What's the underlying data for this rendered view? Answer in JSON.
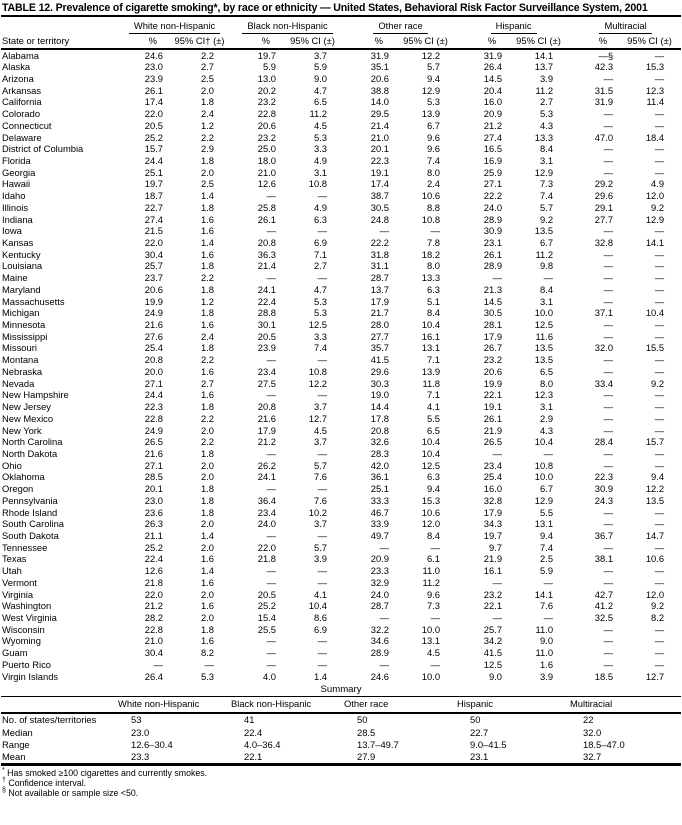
{
  "title": "TABLE 12. Prevalence of cigarette smoking*, by race or ethnicity — United States, Behavioral Risk Factor Surveillance System, 2001",
  "table": {
    "row_header": "State or territory",
    "groups": [
      "White non-Hispanic",
      "Black non-Hispanic",
      "Other race",
      "Hispanic",
      "Multiracial"
    ],
    "pct_label": "%",
    "ci_label_first": "95% CI† (±)",
    "ci_label": "95% CI (±)",
    "rows": [
      {
        "state": "Alabama",
        "values": [
          "24.6",
          "2.2",
          "19.7",
          "3.7",
          "31.9",
          "12.2",
          "31.9",
          "14.1",
          "—§",
          "—"
        ]
      },
      {
        "state": "Alaska",
        "values": [
          "23.0",
          "2.7",
          "5.9",
          "5.9",
          "35.1",
          "5.7",
          "26.4",
          "13.7",
          "42.3",
          "15.3"
        ]
      },
      {
        "state": "Arizona",
        "values": [
          "23.9",
          "2.5",
          "13.0",
          "9.0",
          "20.6",
          "9.4",
          "14.5",
          "3.9",
          "—",
          "—"
        ]
      },
      {
        "state": "Arkansas",
        "values": [
          "26.1",
          "2.0",
          "20.2",
          "4.7",
          "38.8",
          "12.9",
          "20.4",
          "11.2",
          "31.5",
          "12.3"
        ]
      },
      {
        "state": "California",
        "values": [
          "17.4",
          "1.8",
          "23.2",
          "6.5",
          "14.0",
          "5.3",
          "16.0",
          "2.7",
          "31.9",
          "11.4"
        ]
      },
      {
        "state": "Colorado",
        "values": [
          "22.0",
          "2.4",
          "22.8",
          "11.2",
          "29.5",
          "13.9",
          "20.9",
          "5.3",
          "—",
          "—"
        ]
      },
      {
        "state": "Connecticut",
        "values": [
          "20.5",
          "1.2",
          "20.6",
          "4.5",
          "21.4",
          "6.7",
          "21.2",
          "4.3",
          "—",
          "—"
        ]
      },
      {
        "state": "Delaware",
        "values": [
          "25.2",
          "2.2",
          "23.2",
          "5.3",
          "21.0",
          "9.6",
          "27.4",
          "13.3",
          "47.0",
          "18.4"
        ]
      },
      {
        "state": "District of Columbia",
        "values": [
          "15.7",
          "2.9",
          "25.0",
          "3.3",
          "20.1",
          "9.6",
          "16.5",
          "8.4",
          "—",
          "—"
        ]
      },
      {
        "state": "Florida",
        "values": [
          "24.4",
          "1.8",
          "18.0",
          "4.9",
          "22.3",
          "7.4",
          "16.9",
          "3.1",
          "—",
          "—"
        ]
      },
      {
        "state": "Georgia",
        "values": [
          "25.1",
          "2.0",
          "21.0",
          "3.1",
          "19.1",
          "8.0",
          "25.9",
          "12.9",
          "—",
          "—"
        ]
      },
      {
        "state": "Hawaii",
        "values": [
          "19.7",
          "2.5",
          "12.6",
          "10.8",
          "17.4",
          "2.4",
          "27.1",
          "7.3",
          "29.2",
          "4.9"
        ]
      },
      {
        "state": "Idaho",
        "values": [
          "18.7",
          "1.4",
          "—",
          "—",
          "38.7",
          "10.6",
          "22.2",
          "7.4",
          "29.6",
          "12.0"
        ]
      },
      {
        "state": "Illinois",
        "values": [
          "22.7",
          "1.8",
          "25.8",
          "4.9",
          "30.5",
          "8.8",
          "24.0",
          "5.7",
          "29.1",
          "9.2"
        ]
      },
      {
        "state": "Indiana",
        "values": [
          "27.4",
          "1.6",
          "26.1",
          "6.3",
          "24.8",
          "10.8",
          "28.9",
          "9.2",
          "27.7",
          "12.9"
        ]
      },
      {
        "state": "Iowa",
        "values": [
          "21.5",
          "1.6",
          "—",
          "—",
          "—",
          "—",
          "30.9",
          "13.5",
          "—",
          "—"
        ]
      },
      {
        "state": "Kansas",
        "values": [
          "22.0",
          "1.4",
          "20.8",
          "6.9",
          "22.2",
          "7.8",
          "23.1",
          "6.7",
          "32.8",
          "14.1"
        ]
      },
      {
        "state": "Kentucky",
        "values": [
          "30.4",
          "1.6",
          "36.3",
          "7.1",
          "31.8",
          "18.2",
          "26.1",
          "11.2",
          "—",
          "—"
        ]
      },
      {
        "state": "Louisiana",
        "values": [
          "25.7",
          "1.8",
          "21.4",
          "2.7",
          "31.1",
          "8.0",
          "28.9",
          "9.8",
          "—",
          "—"
        ]
      },
      {
        "state": "Maine",
        "values": [
          "23.7",
          "2.2",
          "—",
          "—",
          "28.7",
          "13.3",
          "—",
          "—",
          "—",
          "—"
        ]
      },
      {
        "state": "Maryland",
        "values": [
          "20.6",
          "1.8",
          "24.1",
          "4.7",
          "13.7",
          "6.3",
          "21.3",
          "8.4",
          "—",
          "—"
        ]
      },
      {
        "state": "Massachusetts",
        "values": [
          "19.9",
          "1.2",
          "22.4",
          "5.3",
          "17.9",
          "5.1",
          "14.5",
          "3.1",
          "—",
          "—"
        ]
      },
      {
        "state": "Michigan",
        "values": [
          "24.9",
          "1.8",
          "28.8",
          "5.3",
          "21.7",
          "8.4",
          "30.5",
          "10.0",
          "37.1",
          "10.4"
        ]
      },
      {
        "state": "Minnesota",
        "values": [
          "21.6",
          "1.6",
          "30.1",
          "12.5",
          "28.0",
          "10.4",
          "28.1",
          "12.5",
          "—",
          "—"
        ]
      },
      {
        "state": "Mississippi",
        "values": [
          "27.6",
          "2.4",
          "20.5",
          "3.3",
          "27.7",
          "16.1",
          "17.9",
          "11.6",
          "—",
          "—"
        ]
      },
      {
        "state": "Missouri",
        "values": [
          "25.4",
          "1.8",
          "23.9",
          "7.4",
          "35.7",
          "13.1",
          "26.7",
          "13.5",
          "32.0",
          "15.5"
        ]
      },
      {
        "state": "Montana",
        "values": [
          "20.8",
          "2.2",
          "—",
          "—",
          "41.5",
          "7.1",
          "23.2",
          "13.5",
          "—",
          "—"
        ]
      },
      {
        "state": "Nebraska",
        "values": [
          "20.0",
          "1.6",
          "23.4",
          "10.8",
          "29.6",
          "13.9",
          "20.6",
          "6.5",
          "—",
          "—"
        ]
      },
      {
        "state": "Nevada",
        "values": [
          "27.1",
          "2.7",
          "27.5",
          "12.2",
          "30.3",
          "11.8",
          "19.9",
          "8.0",
          "33.4",
          "9.2"
        ]
      },
      {
        "state": "New Hampshire",
        "values": [
          "24.4",
          "1.6",
          "—",
          "—",
          "19.0",
          "7.1",
          "22.1",
          "12.3",
          "—",
          "—"
        ]
      },
      {
        "state": "New Jersey",
        "values": [
          "22.3",
          "1.8",
          "20.8",
          "3.7",
          "14.4",
          "4.1",
          "19.1",
          "3.1",
          "—",
          "—"
        ]
      },
      {
        "state": "New Mexico",
        "values": [
          "22.8",
          "2.2",
          "21.6",
          "12.7",
          "17.8",
          "5.5",
          "26.1",
          "2.9",
          "—",
          "—"
        ]
      },
      {
        "state": "New York",
        "values": [
          "24.9",
          "2.0",
          "17.9",
          "4.5",
          "20.8",
          "6.5",
          "21.9",
          "4.3",
          "—",
          "—"
        ]
      },
      {
        "state": "North Carolina",
        "values": [
          "26.5",
          "2.2",
          "21.2",
          "3.7",
          "32.6",
          "10.4",
          "26.5",
          "10.4",
          "28.4",
          "15.7"
        ]
      },
      {
        "state": "North Dakota",
        "values": [
          "21.6",
          "1.8",
          "—",
          "—",
          "28.3",
          "10.4",
          "—",
          "—",
          "—",
          "—"
        ]
      },
      {
        "state": "Ohio",
        "values": [
          "27.1",
          "2.0",
          "26.2",
          "5.7",
          "42.0",
          "12.5",
          "23.4",
          "10.8",
          "—",
          "—"
        ]
      },
      {
        "state": "Oklahoma",
        "values": [
          "28.5",
          "2.0",
          "24.1",
          "7.6",
          "36.1",
          "6.3",
          "25.4",
          "10.0",
          "22.3",
          "9.4"
        ]
      },
      {
        "state": "Oregon",
        "values": [
          "20.1",
          "1.8",
          "—",
          "—",
          "25.1",
          "9.4",
          "16.0",
          "6.7",
          "30.9",
          "12.2"
        ]
      },
      {
        "state": "Pennsylvania",
        "values": [
          "23.0",
          "1.8",
          "36.4",
          "7.6",
          "33.3",
          "15.3",
          "32.8",
          "12.9",
          "24.3",
          "13.5"
        ]
      },
      {
        "state": "Rhode Island",
        "values": [
          "23.6",
          "1.8",
          "23.4",
          "10.2",
          "46.7",
          "10.6",
          "17.9",
          "5.5",
          "—",
          "—"
        ]
      },
      {
        "state": "South Carolina",
        "values": [
          "26.3",
          "2.0",
          "24.0",
          "3.7",
          "33.9",
          "12.0",
          "34.3",
          "13.1",
          "—",
          "—"
        ]
      },
      {
        "state": "South Dakota",
        "values": [
          "21.1",
          "1.4",
          "—",
          "—",
          "49.7",
          "8.4",
          "19.7",
          "9.4",
          "36.7",
          "14.7"
        ]
      },
      {
        "state": "Tennessee",
        "values": [
          "25.2",
          "2.0",
          "22.0",
          "5.7",
          "—",
          "—",
          "9.7",
          "7.4",
          "—",
          "—"
        ]
      },
      {
        "state": "Texas",
        "values": [
          "22.4",
          "1.6",
          "21.8",
          "3.9",
          "20.9",
          "6.1",
          "21.9",
          "2.5",
          "38.1",
          "10.6"
        ]
      },
      {
        "state": "Utah",
        "values": [
          "12.6",
          "1.4",
          "—",
          "—",
          "23.3",
          "11.0",
          "16.1",
          "5.9",
          "—",
          "—"
        ]
      },
      {
        "state": "Vermont",
        "values": [
          "21.8",
          "1.6",
          "—",
          "—",
          "32.9",
          "11.2",
          "—",
          "—",
          "—",
          "—"
        ]
      },
      {
        "state": "Virginia",
        "values": [
          "22.0",
          "2.0",
          "20.5",
          "4.1",
          "24.0",
          "9.6",
          "23.2",
          "14.1",
          "42.7",
          "12.0"
        ]
      },
      {
        "state": "Washington",
        "values": [
          "21.2",
          "1.6",
          "25.2",
          "10.4",
          "28.7",
          "7.3",
          "22.1",
          "7.6",
          "41.2",
          "9.2"
        ]
      },
      {
        "state": "West Virginia",
        "values": [
          "28.2",
          "2.0",
          "15.4",
          "8.6",
          "—",
          "—",
          "—",
          "—",
          "32.5",
          "8.2"
        ]
      },
      {
        "state": "Wisconsin",
        "values": [
          "22.8",
          "1.8",
          "25.5",
          "6.9",
          "32.2",
          "10.0",
          "25.7",
          "11.0",
          "—",
          "—"
        ]
      },
      {
        "state": "Wyoming",
        "values": [
          "21.0",
          "1.6",
          "—",
          "—",
          "34.6",
          "13.1",
          "34.2",
          "9.0",
          "—",
          "—"
        ]
      },
      {
        "state": "Guam",
        "values": [
          "30.4",
          "8.2",
          "—",
          "—",
          "28.9",
          "4.5",
          "41.5",
          "11.0",
          "—",
          "—"
        ]
      },
      {
        "state": "Puerto Rico",
        "values": [
          "—",
          "—",
          "—",
          "—",
          "—",
          "—",
          "12.5",
          "1.6",
          "—",
          "—"
        ]
      },
      {
        "state": "Virgin Islands",
        "values": [
          "26.4",
          "5.3",
          "4.0",
          "1.4",
          "24.6",
          "10.0",
          "9.0",
          "3.9",
          "18.5",
          "12.7"
        ]
      }
    ]
  },
  "summary": {
    "title": "Summary",
    "columns": [
      "White non-Hispanic",
      "Black non-Hispanic",
      "Other race",
      "Hispanic",
      "Multiracial"
    ],
    "rows": [
      {
        "label": "No. of states/territories",
        "values": [
          "53",
          "41",
          "50",
          "50",
          "22"
        ]
      },
      {
        "label": "Median",
        "values": [
          "23.0",
          "22.4",
          "28.5",
          "22.7",
          "32.0"
        ]
      },
      {
        "label": "Range",
        "values": [
          "12.6–30.4",
          "4.0–36.4",
          "13.7–49.7",
          "9.0–41.5",
          "18.5–47.0"
        ]
      },
      {
        "label": "Mean",
        "values": [
          "23.3",
          "22.1",
          "27.9",
          "23.1",
          "32.7"
        ]
      }
    ]
  },
  "footnotes": [
    {
      "marker": "*",
      "text": "Has smoked ≥100 cigarettes and currently smokes."
    },
    {
      "marker": "†",
      "text": "Confidence interval."
    },
    {
      "marker": "§",
      "text": "Not available or sample size <50."
    }
  ]
}
